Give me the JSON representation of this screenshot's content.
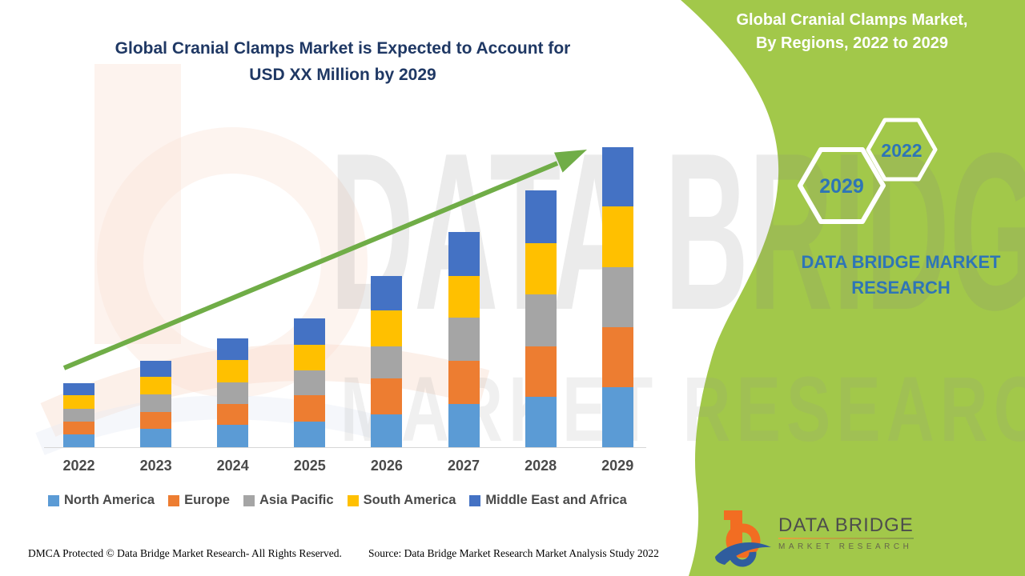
{
  "title": {
    "line1": "Global Cranial Clamps Market is Expected to Account for",
    "line2": "USD XX Million by 2029"
  },
  "panel": {
    "header_line1": "Global Cranial Clamps Market,",
    "header_line2": "By Regions, 2022 to 2029",
    "hex_small_year": "2022",
    "hex_large_year": "2029",
    "brand_line1": "DATA BRIDGE MARKET",
    "brand_line2": "RESEARCH",
    "green_color": "#A2C84A",
    "logo_name": "DATA BRIDGE",
    "logo_sub": "MARKET RESEARCH"
  },
  "watermark": {
    "line1": "DATA BRIDGE",
    "line2": "MARKET RESEARCH"
  },
  "footer": {
    "dmca": "DMCA Protected © Data Bridge Market Research- All Rights Reserved.",
    "source": "Source: Data Bridge Market Research Market Analysis Study 2022"
  },
  "trend_arrow_color": "#70AD47",
  "chart_data": {
    "type": "bar",
    "stacked": true,
    "title": "Global Cranial Clamps Market, By Regions, 2022 to 2029",
    "xlabel": "",
    "ylabel": "",
    "value_axis_labels": "none shown (market sized as USD XX Million)",
    "legend_position": "bottom",
    "grid": false,
    "categories": [
      "2022",
      "2023",
      "2024",
      "2025",
      "2026",
      "2027",
      "2028",
      "2029"
    ],
    "series": [
      {
        "name": "North America",
        "color": "#5B9BD5",
        "values": [
          16,
          23,
          28,
          32,
          41,
          54,
          63,
          75
        ]
      },
      {
        "name": "Europe",
        "color": "#ED7D31",
        "values": [
          16,
          21,
          26,
          33,
          45,
          54,
          63,
          75
        ]
      },
      {
        "name": "Asia Pacific",
        "color": "#A5A5A5",
        "values": [
          16,
          22,
          27,
          31,
          40,
          54,
          65,
          75
        ]
      },
      {
        "name": "South America",
        "color": "#FFC000",
        "values": [
          17,
          22,
          28,
          32,
          45,
          52,
          64,
          76
        ]
      },
      {
        "name": "Middle East and Africa",
        "color": "#4472C4",
        "values": [
          15,
          20,
          27,
          33,
          43,
          55,
          66,
          74
        ]
      }
    ],
    "totals_relative": [
      80,
      108,
      136,
      161,
      214,
      269,
      321,
      375
    ],
    "values_note": "relative units estimated from pixel heights; absolute values not labeled in source image"
  }
}
